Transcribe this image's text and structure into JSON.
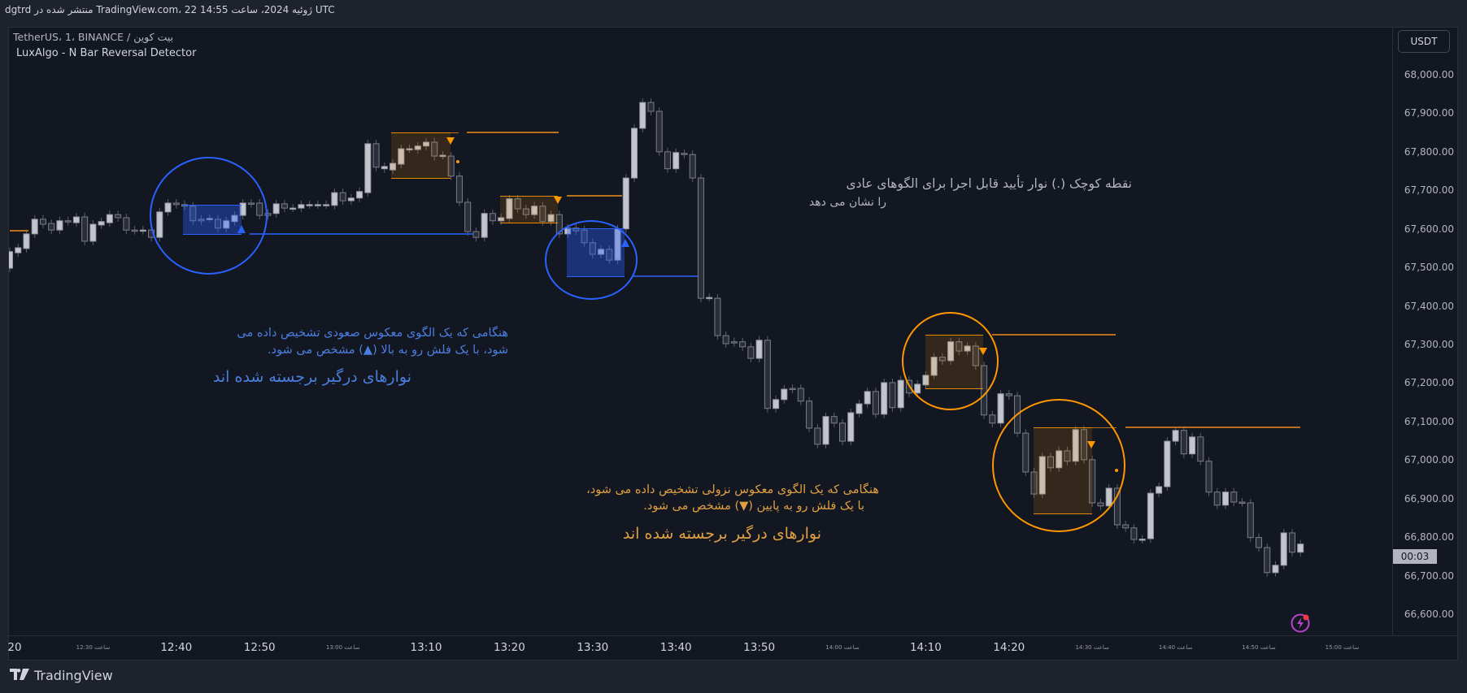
{
  "header": {
    "published": "dgtrd منتشر شده در TradingView.com، 22 ژوئیه 2024، ساعت 14:55 UTC"
  },
  "legend": {
    "symbol": "TetherUS، 1، BINANCE / بیت کوین",
    "indicator": "LuxAlgo - N Bar Reversal Detector"
  },
  "price_axis": {
    "currency_button": "USDT",
    "countdown": "00:03"
  },
  "annotations": {
    "confirm_note_line1": "نقطه کوچک (.) نوار تأیید قابل اجرا برای الگوهای عادی",
    "confirm_note_line2": "را نشان می دهد",
    "bullish_line1": "هنگامی که یک الگوی معکوس صعودی تشخیص داده می",
    "bullish_line2": "شود، با یک فلش رو به بالا (▲) مشخص می شود.",
    "bullish_heading": "نوارهای درگیر برجسته شده اند",
    "bearish_line1": "هنگامی که یک الگوی معکوس نزولی تشخیص داده می شود،",
    "bearish_line2": "با یک فلش رو به پایین (▼) مشخص می شود.",
    "bearish_heading": "نوارهای درگیر برجسته شده اند"
  },
  "footer": {
    "brand": "TradingView"
  },
  "icons": {
    "alert": "lightning-icon",
    "logo": "tradingview-logo-icon",
    "bull_marker": "triangle-up-icon",
    "bear_marker": "triangle-down-icon"
  },
  "colors": {
    "bull_body": "#c3c5cc",
    "bear_body": "#2a2e39",
    "bull_highlight": "#2962ff",
    "bear_highlight": "#ff9800",
    "background": "#131722"
  },
  "chart_data": {
    "type": "candlestick",
    "interval_minutes": 1,
    "first_bar_time": "12:20",
    "ylim": [
      66540,
      68080
    ],
    "y_ticks": [
      68000,
      67900,
      67800,
      67700,
      67600,
      67500,
      67400,
      67300,
      67200,
      67100,
      67000,
      66900,
      66800,
      66700,
      66600
    ],
    "y_tick_labels": [
      "68,000.00",
      "67,900.00",
      "67,800.00",
      "67,700.00",
      "67,600.00",
      "67,500.00",
      "67,400.00",
      "67,300.00",
      "67,200.00",
      "67,100.00",
      "67,000.00",
      "66,900.00",
      "66,800.00",
      "66,700.00",
      "66,600.00"
    ],
    "x_ticks": [
      {
        "label": "20",
        "time": "12:20",
        "major": true
      },
      {
        "label": "ساعت 12:30",
        "time": "12:30",
        "major": false
      },
      {
        "label": "12:40",
        "time": "12:40",
        "major": true
      },
      {
        "label": "12:50",
        "time": "12:50",
        "major": true
      },
      {
        "label": "ساعت 13:00",
        "time": "13:00",
        "major": false
      },
      {
        "label": "13:10",
        "time": "13:10",
        "major": true
      },
      {
        "label": "13:20",
        "time": "13:20",
        "major": true
      },
      {
        "label": "13:30",
        "time": "13:30",
        "major": true
      },
      {
        "label": "13:40",
        "time": "13:40",
        "major": true
      },
      {
        "label": "13:50",
        "time": "13:50",
        "major": true
      },
      {
        "label": "ساعت 14:00",
        "time": "14:00",
        "major": false
      },
      {
        "label": "14:10",
        "time": "14:10",
        "major": true
      },
      {
        "label": "14:20",
        "time": "14:20",
        "major": true
      },
      {
        "label": "ساعت 14:30",
        "time": "14:30",
        "major": false
      },
      {
        "label": "ساعت 14:40",
        "time": "14:40",
        "major": false
      },
      {
        "label": "ساعت 14:50",
        "time": "14:50",
        "major": false
      },
      {
        "label": "ساعت 15:00",
        "time": "15:00",
        "major": false
      }
    ],
    "open_close": [
      [
        67498,
        67541
      ],
      [
        67538,
        67551
      ],
      [
        67549,
        67587
      ],
      [
        67587,
        67625
      ],
      [
        67625,
        67612
      ],
      [
        67614,
        67597
      ],
      [
        67597,
        67621
      ],
      [
        67621,
        67619
      ],
      [
        67616,
        67631
      ],
      [
        67631,
        67568
      ],
      [
        67568,
        67612
      ],
      [
        67610,
        67619
      ],
      [
        67616,
        67637
      ],
      [
        67637,
        67629
      ],
      [
        67629,
        67597
      ],
      [
        67597,
        67596
      ],
      [
        67596,
        67597
      ],
      [
        67597,
        67578
      ],
      [
        67578,
        67644
      ],
      [
        67644,
        67667
      ],
      [
        67667,
        67663
      ],
      [
        67663,
        67659
      ],
      [
        67659,
        67621
      ],
      [
        67625,
        67621
      ],
      [
        67627,
        67627
      ],
      [
        67625,
        67602
      ],
      [
        67602,
        67621
      ],
      [
        67619,
        67635
      ],
      [
        67635,
        67667
      ],
      [
        67667,
        67666
      ],
      [
        67667,
        67635
      ],
      [
        67640,
        67635
      ],
      [
        67640,
        67665
      ],
      [
        67665,
        67654
      ],
      [
        67654,
        67654
      ],
      [
        67654,
        67663
      ],
      [
        67663,
        67663
      ],
      [
        67663,
        67663
      ],
      [
        67663,
        67663
      ],
      [
        67661,
        67694
      ],
      [
        67694,
        67673
      ],
      [
        67673,
        67680
      ],
      [
        67680,
        67697
      ],
      [
        67694,
        67821
      ],
      [
        67821,
        67760
      ],
      [
        67756,
        67762
      ],
      [
        67753,
        67770
      ],
      [
        67768,
        67808
      ],
      [
        67808,
        67808
      ],
      [
        67806,
        67815
      ],
      [
        67815,
        67825
      ],
      [
        67825,
        67789
      ],
      [
        67791,
        67791
      ],
      [
        67789,
        67737
      ],
      [
        67737,
        67669
      ],
      [
        67669,
        67593
      ],
      [
        67593,
        67578
      ],
      [
        67578,
        67640
      ],
      [
        67640,
        67621
      ],
      [
        67621,
        67629
      ],
      [
        67627,
        67678
      ],
      [
        67678,
        67652
      ],
      [
        67652,
        67637
      ],
      [
        67637,
        67659
      ],
      [
        67659,
        67619
      ],
      [
        67619,
        67637
      ],
      [
        67637,
        67587
      ],
      [
        67587,
        67602
      ],
      [
        67602,
        67595
      ],
      [
        67597,
        67564
      ],
      [
        67564,
        67534
      ],
      [
        67534,
        67547
      ],
      [
        67547,
        67519
      ],
      [
        67519,
        67600
      ],
      [
        67600,
        67732
      ],
      [
        67732,
        67861
      ],
      [
        67861,
        67928
      ],
      [
        67928,
        67905
      ],
      [
        67905,
        67800
      ],
      [
        67800,
        67756
      ],
      [
        67756,
        67798
      ],
      [
        67796,
        67793
      ],
      [
        67793,
        67732
      ],
      [
        67732,
        67420
      ],
      [
        67422,
        67422
      ],
      [
        67420,
        67323
      ],
      [
        67323,
        67302
      ],
      [
        67307,
        67305
      ],
      [
        67307,
        67294
      ],
      [
        67294,
        67264
      ],
      [
        67264,
        67311
      ],
      [
        67311,
        67134
      ],
      [
        67134,
        67157
      ],
      [
        67157,
        67184
      ],
      [
        67186,
        67184
      ],
      [
        67186,
        67153
      ],
      [
        67153,
        67083
      ],
      [
        67083,
        67041
      ],
      [
        67041,
        67113
      ],
      [
        67113,
        67096
      ],
      [
        67096,
        67049
      ],
      [
        67049,
        67123
      ],
      [
        67121,
        67146
      ],
      [
        67146,
        67178
      ],
      [
        67178,
        67119
      ],
      [
        67119,
        67201
      ],
      [
        67201,
        67136
      ],
      [
        67136,
        67207
      ],
      [
        67207,
        67174
      ],
      [
        67174,
        67197
      ],
      [
        67195,
        67220
      ],
      [
        67220,
        67267
      ],
      [
        67267,
        67258
      ],
      [
        67258,
        67307
      ],
      [
        67307,
        67283
      ],
      [
        67283,
        67296
      ],
      [
        67296,
        67245
      ],
      [
        67245,
        67117
      ],
      [
        67117,
        67096
      ],
      [
        67096,
        67172
      ],
      [
        67172,
        67167
      ],
      [
        67167,
        67070
      ],
      [
        67070,
        66969
      ],
      [
        66969,
        66912
      ],
      [
        66912,
        67009
      ],
      [
        67009,
        66980
      ],
      [
        66980,
        67024
      ],
      [
        67024,
        66997
      ],
      [
        66997,
        67079
      ],
      [
        67079,
        67001
      ],
      [
        67001,
        66889
      ],
      [
        66889,
        66881
      ],
      [
        66881,
        66927
      ],
      [
        66927,
        66832
      ],
      [
        66832,
        66824
      ],
      [
        66824,
        66794
      ],
      [
        66794,
        66795
      ],
      [
        66796,
        66914
      ],
      [
        66914,
        66931
      ],
      [
        66931,
        67049
      ],
      [
        67049,
        67077
      ],
      [
        67077,
        67016
      ],
      [
        67016,
        67060
      ],
      [
        67060,
        66997
      ],
      [
        66997,
        66917
      ],
      [
        66917,
        66883
      ],
      [
        66883,
        66917
      ],
      [
        66917,
        66891
      ],
      [
        66891,
        66890
      ],
      [
        66889,
        66799
      ],
      [
        66799,
        66773
      ],
      [
        66773,
        66708
      ],
      [
        66708,
        66727
      ],
      [
        66727,
        66811
      ],
      [
        66811,
        66761
      ],
      [
        66761,
        66782
      ]
    ]
  }
}
